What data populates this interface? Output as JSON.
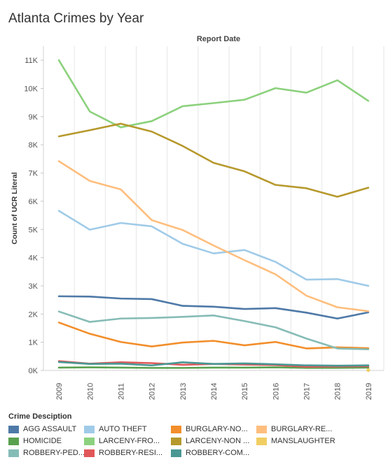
{
  "title": "Atlanta Crimes by Year",
  "chart_data": {
    "type": "line",
    "header": "Report Date",
    "ylabel": "Count of UCR Literal",
    "ylim": [
      0,
      11500
    ],
    "yticks": [
      0,
      1000,
      2000,
      3000,
      4000,
      5000,
      6000,
      7000,
      8000,
      9000,
      10000,
      11000
    ],
    "ytick_labels": [
      "0K",
      "1K",
      "2K",
      "3K",
      "4K",
      "5K",
      "6K",
      "7K",
      "8K",
      "9K",
      "10K",
      "11K"
    ],
    "x": [
      "2009",
      "2010",
      "2011",
      "2012",
      "2013",
      "2014",
      "2015",
      "2016",
      "2017",
      "2018",
      "2019"
    ],
    "grid": "vertical",
    "legend_title": "Crime Desciption",
    "series": [
      {
        "name": "AGG ASSAULT",
        "legend_label": "AGG ASSAULT",
        "color": "#4e79a7",
        "values": [
          2630,
          2620,
          2550,
          2530,
          2290,
          2260,
          2180,
          2210,
          2050,
          1840,
          2060
        ]
      },
      {
        "name": "AUTO THEFT",
        "legend_label": "AUTO THEFT",
        "color": "#a0cbe8",
        "values": [
          5660,
          4990,
          5230,
          5110,
          4490,
          4150,
          4270,
          3850,
          3220,
          3240,
          3000
        ]
      },
      {
        "name": "BURGLARY-NONRES",
        "legend_label": "BURGLARY-NO...",
        "color": "#f28e2b",
        "values": [
          1700,
          1300,
          1010,
          850,
          990,
          1050,
          890,
          1010,
          780,
          820,
          790
        ]
      },
      {
        "name": "BURGLARY-RESIDENCE",
        "legend_label": "BURGLARY-RE...",
        "color": "#ffbe7d",
        "values": [
          7420,
          6720,
          6420,
          5330,
          4980,
          4430,
          3910,
          3410,
          2650,
          2240,
          2100
        ]
      },
      {
        "name": "HOMICIDE",
        "legend_label": "HOMICIDE",
        "color": "#59a14f",
        "values": [
          100,
          110,
          100,
          90,
          90,
          100,
          100,
          110,
          90,
          90,
          100
        ]
      },
      {
        "name": "LARCENY-FROM VEHICLE",
        "legend_label": "LARCENY-FRO...",
        "color": "#8cd17d",
        "values": [
          11000,
          9180,
          8620,
          8840,
          9370,
          9480,
          9600,
          10010,
          9850,
          10290,
          9560
        ]
      },
      {
        "name": "LARCENY-NON VEHICLE",
        "legend_label": "LARCENY-NON ...",
        "color": "#b6992d",
        "values": [
          8300,
          8520,
          8750,
          8470,
          7960,
          7360,
          7060,
          6580,
          6460,
          6160,
          6480
        ]
      },
      {
        "name": "MANSLAUGHTER",
        "legend_label": "MANSLAUGHTER",
        "color": "#f1ce63",
        "values": [
          null,
          null,
          null,
          null,
          null,
          null,
          null,
          null,
          null,
          null,
          10
        ]
      },
      {
        "name": "ROBBERY-PEDESTRIAN",
        "legend_label": "ROBBERY-PED...",
        "color": "#86bcb6",
        "values": [
          2090,
          1720,
          1840,
          1860,
          1900,
          1950,
          1750,
          1530,
          1130,
          780,
          750
        ]
      },
      {
        "name": "ROBBERY-RESIDENCE",
        "legend_label": "ROBBERY-RESI...",
        "color": "#e15759",
        "values": [
          330,
          240,
          290,
          260,
          200,
          230,
          210,
          190,
          130,
          140,
          150
        ]
      },
      {
        "name": "ROBBERY-COMMERCIAL",
        "legend_label": "ROBBERY-COM...",
        "color": "#499894",
        "values": [
          300,
          230,
          240,
          180,
          290,
          230,
          250,
          220,
          180,
          170,
          180
        ]
      }
    ]
  }
}
